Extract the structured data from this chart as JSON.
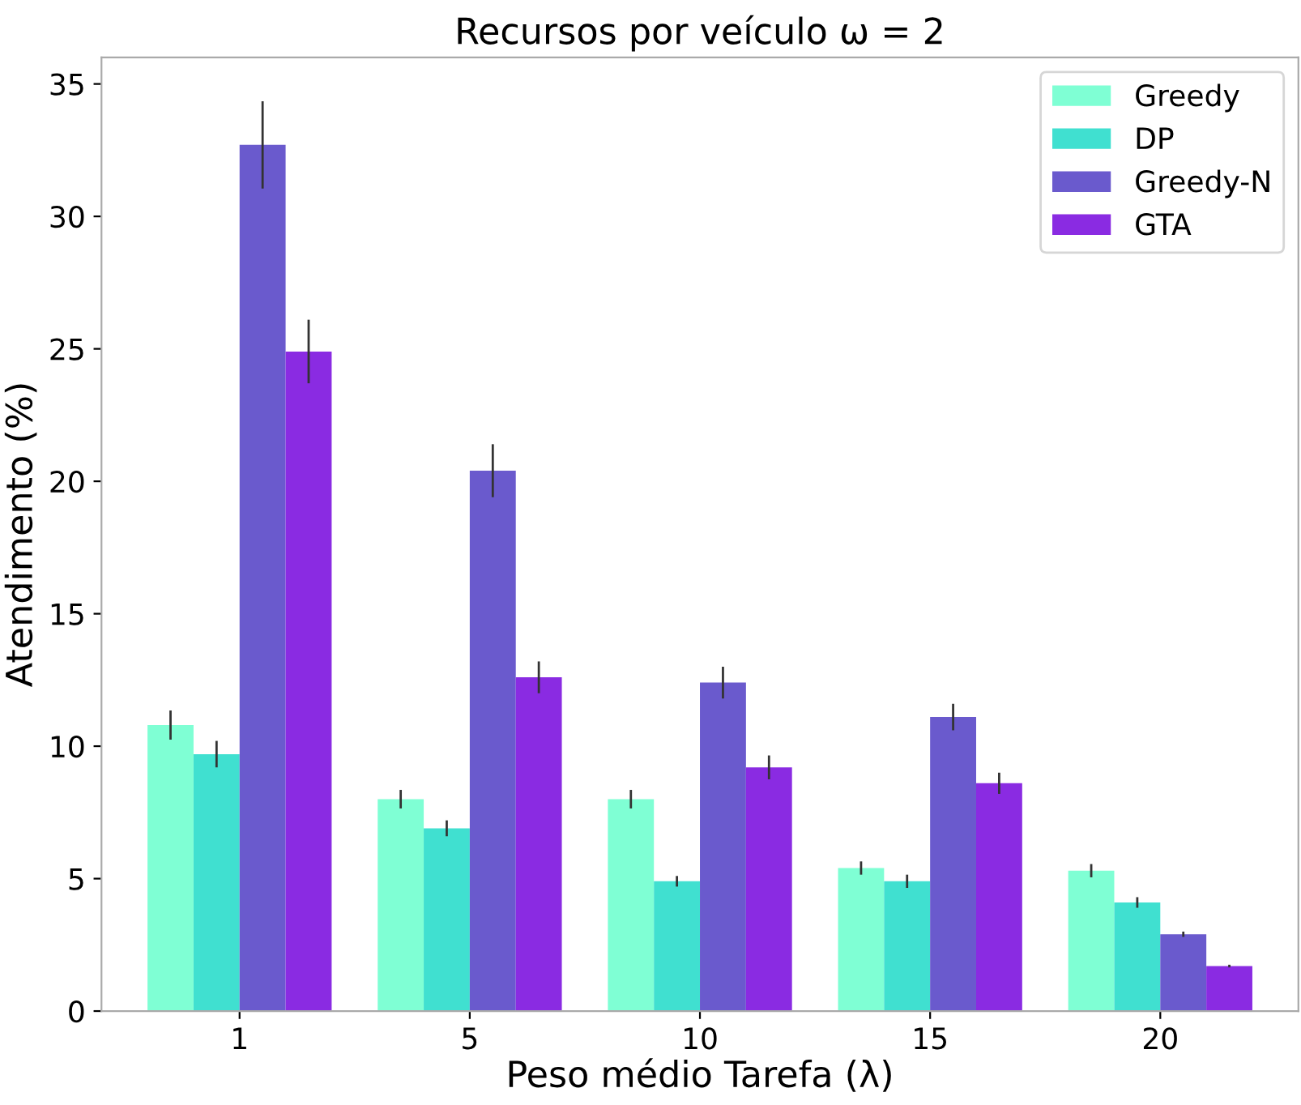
{
  "chart_data": {
    "type": "bar",
    "title": "Recursos por veículo ω = 2",
    "xlabel": "Peso médio Tarefa (λ)",
    "ylabel": "Atendimento (%)",
    "categories": [
      "1",
      "5",
      "10",
      "15",
      "20"
    ],
    "series": [
      {
        "name": "Greedy",
        "color": "#7fffd4",
        "values": [
          10.8,
          8.0,
          8.0,
          5.4,
          5.3
        ],
        "errors": [
          0.55,
          0.35,
          0.35,
          0.25,
          0.25
        ]
      },
      {
        "name": "DP",
        "color": "#40e0d0",
        "values": [
          9.7,
          6.9,
          4.9,
          4.9,
          4.1
        ],
        "errors": [
          0.5,
          0.3,
          0.2,
          0.25,
          0.2
        ]
      },
      {
        "name": "Greedy-N",
        "color": "#6a5acd",
        "values": [
          32.7,
          20.4,
          12.4,
          11.1,
          2.9
        ],
        "errors": [
          1.65,
          1.0,
          0.6,
          0.5,
          0.1
        ]
      },
      {
        "name": "GTA",
        "color": "#8a2be2",
        "values": [
          24.9,
          12.6,
          9.2,
          8.6,
          1.7
        ],
        "errors": [
          1.2,
          0.6,
          0.45,
          0.4,
          0.05
        ]
      }
    ],
    "ylim": [
      0,
      36
    ],
    "yticks": [
      0,
      5,
      10,
      15,
      20,
      25,
      30,
      35
    ],
    "grid": false,
    "legend": "top right"
  }
}
